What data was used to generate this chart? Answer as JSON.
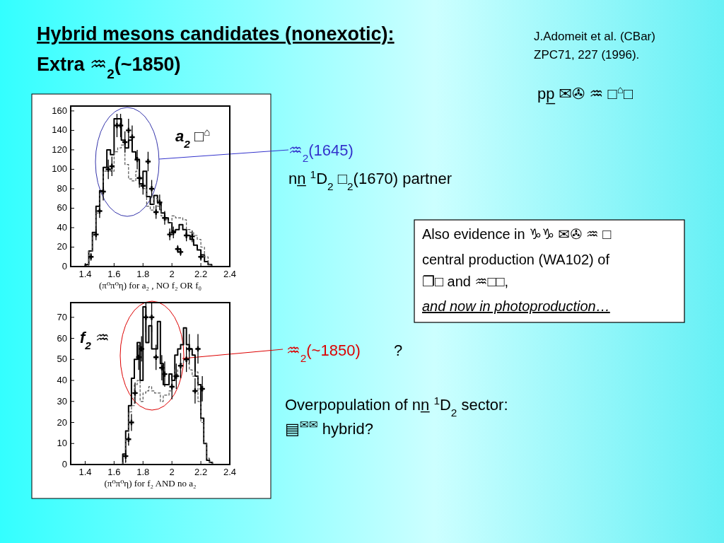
{
  "chart_data": [
    {
      "type": "histogram",
      "title": "Hybrid mesons candidates (nonexotic):",
      "subtitle": "Extra ♒$_{2}$(~1850)",
      "xlabel": "(π⁰π⁰η) for a₂ , NO f₂ OR f₀",
      "bins": [
        1.4,
        1.425,
        1.45,
        1.475,
        1.5,
        1.525,
        1.55,
        1.575,
        1.6,
        1.625,
        1.65,
        1.675,
        1.7,
        1.725,
        1.75,
        1.775,
        1.8,
        1.825,
        1.85,
        1.875,
        1.9,
        1.925,
        1.95,
        1.975,
        2.0,
        2.025,
        2.05,
        2.075,
        2.1,
        2.125,
        2.15,
        2.175,
        2.2,
        2.225,
        2.25,
        2.275
      ],
      "series": [
        {
          "color": "#000000",
          "line_style": "solid",
          "values": [
            2,
            16,
            35,
            62,
            78,
            102,
            120,
            115,
            152,
            152,
            130,
            122,
            130,
            118,
            110,
            85,
            98,
            72,
            64,
            73,
            66,
            55,
            50,
            45,
            36,
            38,
            43,
            38,
            32,
            28,
            22,
            17,
            12,
            5,
            2
          ]
        },
        {
          "color": "#555555",
          "line_style": "dashed",
          "values": [
            1,
            16,
            32,
            55,
            75,
            98,
            100,
            98,
            118,
            122,
            125,
            105,
            90,
            88,
            98,
            90,
            80,
            62,
            58,
            70,
            62,
            52,
            48,
            45,
            52,
            50,
            50,
            48,
            38,
            35,
            32,
            28,
            20,
            10,
            2
          ]
        },
        {
          "type": "scatter",
          "color": "#000000",
          "x": [
            1.44,
            1.475,
            1.5,
            1.525,
            1.56,
            1.585,
            1.62,
            1.645,
            1.675,
            1.7,
            1.725,
            1.76,
            1.775,
            1.8,
            1.835,
            1.86,
            1.89,
            1.915,
            1.95,
            1.985,
            2.01,
            2.04,
            2.06,
            2.1,
            2.14,
            2.2
          ],
          "values": [
            10,
            33,
            57,
            77,
            100,
            103,
            145,
            145,
            128,
            140,
            133,
            110,
            91,
            83,
            108,
            80,
            56,
            66,
            50,
            33,
            35,
            18,
            15,
            32,
            31,
            10
          ],
          "errors": [
            4,
            6,
            7,
            9,
            10,
            10,
            12,
            12,
            11,
            12,
            12,
            10,
            10,
            9,
            10,
            9,
            7,
            8,
            7,
            6,
            6,
            4,
            4,
            6,
            6,
            4
          ]
        }
      ],
      "xlim": [
        1.3,
        2.4
      ],
      "xticks": [
        1.4,
        1.6,
        1.8,
        2,
        2.2,
        2.4
      ],
      "ylim": [
        0,
        165
      ],
      "yticks": [
        0,
        20,
        40,
        60,
        80,
        100,
        120,
        140,
        160
      ],
      "marker": "cross",
      "annotations": [
        "a$_{2}$ □$^{⌂}$",
        "J.Adomeit et al. (CBar)",
        "ZPC71, 227 (1996).",
        "pp̲ ✉✇ ♒ □$^{⌂}$□",
        "♒$_{2}$(1645)",
        "nn̲ $^{1}$D$_{2}$ □$_{2}$(1670) partner",
        "Also evidence in ♑♑ ✉✇ ♒ □",
        "central production (WA102) of",
        "❐□ and ♒□□,",
        "and now in photoproduction…",
        "♒$_{2}$(~1850)",
        "?",
        "Overpopulation of nn̲ $^{1}$D$_{2}$ sector:",
        "▤$^{✉✉}$ hybrid?"
      ]
    },
    {
      "type": "histogram",
      "xlabel": "(π⁰π⁰η) for f₂ AND no a₂",
      "bins": [
        1.66,
        1.68,
        1.7,
        1.72,
        1.74,
        1.76,
        1.78,
        1.8,
        1.82,
        1.84,
        1.86,
        1.88,
        1.9,
        1.92,
        1.94,
        1.96,
        1.98,
        2.0,
        2.02,
        2.04,
        2.06,
        2.08,
        2.1,
        2.12,
        2.14,
        2.16,
        2.18,
        2.2,
        2.22,
        2.24,
        2.26,
        2.28
      ],
      "series": [
        {
          "color": "#000000",
          "line_style": "solid",
          "values": [
            5,
            16,
            28,
            41,
            50,
            58,
            40,
            75,
            58,
            66,
            55,
            55,
            68,
            48,
            38,
            38,
            43,
            40,
            52,
            55,
            57,
            65,
            57,
            55,
            52,
            42,
            38,
            22,
            10,
            2,
            1
          ]
        },
        {
          "color": "#555555",
          "line_style": "dashed",
          "values": [
            1,
            12,
            25,
            28,
            38,
            40,
            30,
            34,
            35,
            37,
            35,
            34,
            34,
            30,
            33,
            33,
            35,
            42,
            45,
            42,
            48,
            50,
            48,
            45,
            42,
            44,
            30,
            20,
            10,
            3,
            1
          ]
        },
        {
          "type": "scatter",
          "color": "#000000",
          "x": [
            1.68,
            1.7,
            1.72,
            1.745,
            1.77,
            1.79,
            1.82,
            1.86,
            1.89,
            1.93,
            1.95,
            2.0,
            2.03,
            2.06,
            2.1,
            2.12,
            2.16,
            2.18,
            2.21
          ],
          "values": [
            4,
            12,
            20,
            34,
            51,
            55,
            70,
            70,
            51,
            46,
            43,
            37,
            42,
            47,
            50,
            55,
            35,
            55,
            36
          ],
          "errors": [
            3,
            3,
            4,
            5,
            6,
            6,
            7,
            7,
            6,
            6,
            6,
            6,
            6,
            6,
            6,
            7,
            6,
            7,
            6
          ]
        }
      ],
      "xlim": [
        1.3,
        2.4
      ],
      "xticks": [
        1.4,
        1.6,
        1.8,
        2,
        2.2,
        2.4
      ],
      "ylim": [
        0,
        77
      ],
      "yticks": [
        0,
        10,
        20,
        30,
        40,
        50,
        60,
        70
      ],
      "marker": "cross",
      "annotations": [
        "f$_{2}$ ♒"
      ]
    }
  ]
}
